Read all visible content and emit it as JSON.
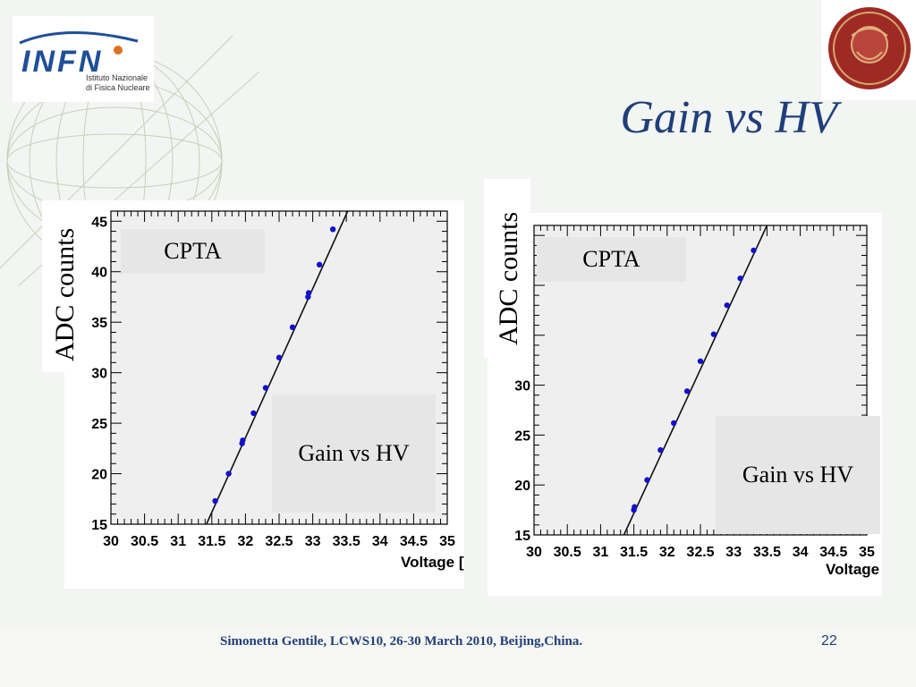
{
  "title": "Gain vs HV",
  "footer": "Simonetta Gentile,  LCWS10, 26-30 March 2010, Beijing,China.",
  "page_number": "22",
  "logos": {
    "left": {
      "lines": [
        "Istituto Nazionale",
        "di Fisica Nucleare"
      ],
      "wordmark": "INFN"
    },
    "right": {
      "text": "STVDIVM VRBIS"
    }
  },
  "colors": {
    "title": "#1f3f7a",
    "points": "#1111cc",
    "label_box": "#e6e6e6"
  },
  "chart_data": [
    {
      "type": "scatter",
      "ylabel": "ADC counts",
      "xlabel": "Voltage [V]",
      "xlim": [
        30,
        35
      ],
      "ylim": [
        15,
        46
      ],
      "xticks": [
        "30",
        "30.5",
        "31",
        "31.5",
        "32",
        "32.5",
        "33",
        "33.5",
        "34",
        "34.5",
        "35"
      ],
      "yticks": [
        "15",
        "20",
        "25",
        "30",
        "35",
        "40",
        "45"
      ],
      "label_top": "CPTA",
      "label_bottom": "Gain vs HV",
      "points": [
        {
          "x": 31.55,
          "y": 17.3
        },
        {
          "x": 31.75,
          "y": 20.0
        },
        {
          "x": 31.95,
          "y": 23.0
        },
        {
          "x": 31.96,
          "y": 23.3
        },
        {
          "x": 32.12,
          "y": 26.0
        },
        {
          "x": 32.3,
          "y": 28.5
        },
        {
          "x": 32.5,
          "y": 31.5
        },
        {
          "x": 32.7,
          "y": 34.5
        },
        {
          "x": 32.93,
          "y": 37.5
        },
        {
          "x": 32.94,
          "y": 37.9
        },
        {
          "x": 33.1,
          "y": 40.7
        },
        {
          "x": 33.3,
          "y": 44.2
        }
      ],
      "fit_line": [
        {
          "x": 31.42,
          "y": 15
        },
        {
          "x": 33.52,
          "y": 46
        }
      ]
    },
    {
      "type": "scatter",
      "ylabel": "ADC counts",
      "xlabel": "Voltage [V]",
      "xlim": [
        30,
        35
      ],
      "ylim": [
        15,
        46
      ],
      "xticks": [
        "30",
        "30.5",
        "31",
        "31.5",
        "32",
        "32.5",
        "33",
        "33.5",
        "34",
        "34.5",
        "35"
      ],
      "yticks": [
        "15",
        "20",
        "25",
        "30"
      ],
      "label_top": "CPTA",
      "label_bottom": "Gain vs HV",
      "points": [
        {
          "x": 31.5,
          "y": 17.5
        },
        {
          "x": 31.51,
          "y": 17.8
        },
        {
          "x": 31.7,
          "y": 20.5
        },
        {
          "x": 31.9,
          "y": 23.5
        },
        {
          "x": 32.1,
          "y": 26.2
        },
        {
          "x": 32.3,
          "y": 29.4
        },
        {
          "x": 32.5,
          "y": 32.4
        },
        {
          "x": 32.7,
          "y": 35.1
        },
        {
          "x": 32.9,
          "y": 38.0
        },
        {
          "x": 33.1,
          "y": 40.7
        },
        {
          "x": 33.3,
          "y": 43.5
        }
      ],
      "fit_line": [
        {
          "x": 31.35,
          "y": 15
        },
        {
          "x": 33.5,
          "y": 46
        }
      ]
    }
  ]
}
